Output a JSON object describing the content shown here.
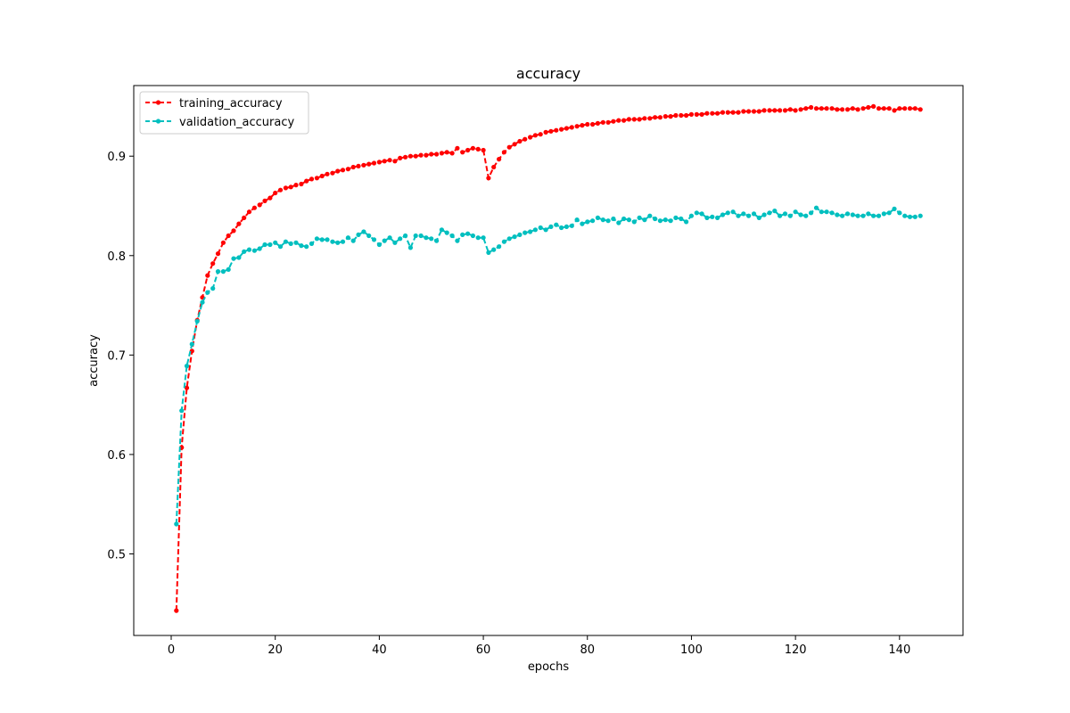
{
  "chart_data": {
    "type": "line",
    "title": "accuracy",
    "xlabel": "epochs",
    "ylabel": "accuracy",
    "xlim": [
      -7.2,
      152.2
    ],
    "ylim": [
      0.418,
      0.971
    ],
    "xticks": [
      0,
      20,
      40,
      60,
      80,
      100,
      120,
      140
    ],
    "yticks": [
      0.5,
      0.6,
      0.7,
      0.8,
      0.9
    ],
    "grid": false,
    "legend": "upper-left",
    "series": [
      {
        "name": "training_accuracy",
        "color": "#ff0000",
        "linestyle": "dashed",
        "marker": "dot",
        "x": [
          1,
          2,
          3,
          4,
          5,
          6,
          7,
          8,
          9,
          10,
          11,
          12,
          13,
          14,
          15,
          16,
          17,
          18,
          19,
          20,
          21,
          22,
          23,
          24,
          25,
          26,
          27,
          28,
          29,
          30,
          31,
          32,
          33,
          34,
          35,
          36,
          37,
          38,
          39,
          40,
          41,
          42,
          43,
          44,
          45,
          46,
          47,
          48,
          49,
          50,
          51,
          52,
          53,
          54,
          55,
          56,
          57,
          58,
          59,
          60,
          61,
          62,
          63,
          64,
          65,
          66,
          67,
          68,
          69,
          70,
          71,
          72,
          73,
          74,
          75,
          76,
          77,
          78,
          79,
          80,
          81,
          82,
          83,
          84,
          85,
          86,
          87,
          88,
          89,
          90,
          91,
          92,
          93,
          94,
          95,
          96,
          97,
          98,
          99,
          100,
          101,
          102,
          103,
          104,
          105,
          106,
          107,
          108,
          109,
          110,
          111,
          112,
          113,
          114,
          115,
          116,
          117,
          118,
          119,
          120,
          121,
          122,
          123,
          124,
          125,
          126,
          127,
          128,
          129,
          130,
          131,
          132,
          133,
          134,
          135,
          136,
          137,
          138,
          139,
          140,
          141,
          142,
          143,
          144
        ],
        "values": [
          0.443,
          0.607,
          0.667,
          0.704,
          0.735,
          0.758,
          0.78,
          0.792,
          0.802,
          0.813,
          0.82,
          0.825,
          0.832,
          0.838,
          0.844,
          0.848,
          0.851,
          0.855,
          0.858,
          0.863,
          0.866,
          0.868,
          0.869,
          0.871,
          0.872,
          0.875,
          0.877,
          0.878,
          0.88,
          0.882,
          0.883,
          0.885,
          0.886,
          0.887,
          0.889,
          0.89,
          0.891,
          0.892,
          0.893,
          0.894,
          0.895,
          0.896,
          0.895,
          0.898,
          0.899,
          0.9,
          0.9,
          0.901,
          0.901,
          0.902,
          0.902,
          0.903,
          0.904,
          0.903,
          0.908,
          0.904,
          0.906,
          0.908,
          0.907,
          0.906,
          0.878,
          0.889,
          0.897,
          0.904,
          0.909,
          0.912,
          0.915,
          0.917,
          0.919,
          0.921,
          0.922,
          0.924,
          0.925,
          0.926,
          0.927,
          0.928,
          0.929,
          0.93,
          0.931,
          0.932,
          0.932,
          0.933,
          0.934,
          0.934,
          0.935,
          0.936,
          0.936,
          0.937,
          0.937,
          0.937,
          0.938,
          0.938,
          0.939,
          0.939,
          0.94,
          0.94,
          0.941,
          0.941,
          0.941,
          0.942,
          0.942,
          0.942,
          0.943,
          0.943,
          0.943,
          0.944,
          0.944,
          0.944,
          0.944,
          0.945,
          0.945,
          0.945,
          0.945,
          0.946,
          0.946,
          0.946,
          0.946,
          0.946,
          0.947,
          0.946,
          0.947,
          0.948,
          0.949,
          0.948,
          0.948,
          0.948,
          0.948,
          0.947,
          0.947,
          0.947,
          0.948,
          0.947,
          0.948,
          0.949,
          0.95,
          0.948,
          0.948,
          0.948,
          0.946,
          0.948,
          0.948,
          0.948,
          0.948,
          0.947
        ]
      },
      {
        "name": "validation_accuracy",
        "color": "#00bfbf",
        "linestyle": "dashed",
        "marker": "dot",
        "x": [
          1,
          2,
          3,
          4,
          5,
          6,
          7,
          8,
          9,
          10,
          11,
          12,
          13,
          14,
          15,
          16,
          17,
          18,
          19,
          20,
          21,
          22,
          23,
          24,
          25,
          26,
          27,
          28,
          29,
          30,
          31,
          32,
          33,
          34,
          35,
          36,
          37,
          38,
          39,
          40,
          41,
          42,
          43,
          44,
          45,
          46,
          47,
          48,
          49,
          50,
          51,
          52,
          53,
          54,
          55,
          56,
          57,
          58,
          59,
          60,
          61,
          62,
          63,
          64,
          65,
          66,
          67,
          68,
          69,
          70,
          71,
          72,
          73,
          74,
          75,
          76,
          77,
          78,
          79,
          80,
          81,
          82,
          83,
          84,
          85,
          86,
          87,
          88,
          89,
          90,
          91,
          92,
          93,
          94,
          95,
          96,
          97,
          98,
          99,
          100,
          101,
          102,
          103,
          104,
          105,
          106,
          107,
          108,
          109,
          110,
          111,
          112,
          113,
          114,
          115,
          116,
          117,
          118,
          119,
          120,
          121,
          122,
          123,
          124,
          125,
          126,
          127,
          128,
          129,
          130,
          131,
          132,
          133,
          134,
          135,
          136,
          137,
          138,
          139,
          140,
          141,
          142,
          143,
          144
        ],
        "values": [
          0.53,
          0.644,
          0.689,
          0.711,
          0.734,
          0.753,
          0.763,
          0.767,
          0.784,
          0.784,
          0.786,
          0.797,
          0.798,
          0.804,
          0.806,
          0.805,
          0.807,
          0.811,
          0.811,
          0.813,
          0.809,
          0.814,
          0.812,
          0.813,
          0.81,
          0.809,
          0.812,
          0.817,
          0.816,
          0.816,
          0.814,
          0.813,
          0.814,
          0.818,
          0.815,
          0.821,
          0.824,
          0.82,
          0.816,
          0.811,
          0.815,
          0.818,
          0.813,
          0.817,
          0.82,
          0.808,
          0.82,
          0.82,
          0.818,
          0.817,
          0.815,
          0.826,
          0.823,
          0.82,
          0.815,
          0.821,
          0.822,
          0.82,
          0.818,
          0.818,
          0.803,
          0.806,
          0.809,
          0.814,
          0.817,
          0.819,
          0.821,
          0.823,
          0.824,
          0.826,
          0.828,
          0.826,
          0.829,
          0.831,
          0.828,
          0.829,
          0.83,
          0.836,
          0.832,
          0.834,
          0.835,
          0.838,
          0.836,
          0.835,
          0.837,
          0.833,
          0.837,
          0.836,
          0.834,
          0.838,
          0.836,
          0.84,
          0.837,
          0.835,
          0.836,
          0.835,
          0.838,
          0.837,
          0.834,
          0.84,
          0.843,
          0.842,
          0.838,
          0.839,
          0.838,
          0.841,
          0.843,
          0.844,
          0.84,
          0.842,
          0.84,
          0.842,
          0.838,
          0.841,
          0.843,
          0.845,
          0.84,
          0.842,
          0.84,
          0.844,
          0.841,
          0.84,
          0.843,
          0.848,
          0.844,
          0.844,
          0.843,
          0.841,
          0.84,
          0.842,
          0.841,
          0.84,
          0.84,
          0.842,
          0.84,
          0.84,
          0.842,
          0.843,
          0.847,
          0.843,
          0.84,
          0.839,
          0.839,
          0.84
        ]
      }
    ]
  }
}
